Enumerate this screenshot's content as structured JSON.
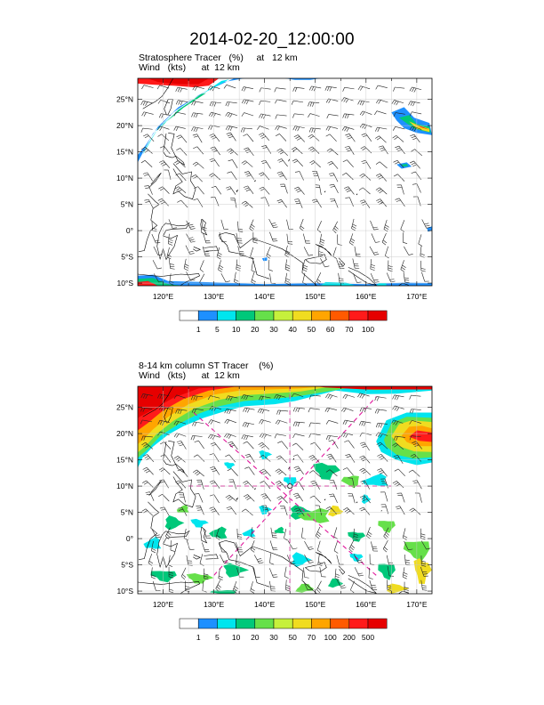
{
  "title": "2014-02-20_12:00:00",
  "panels": [
    {
      "line1": "Stratosphere Tracer   (%)     at   12 km",
      "line2": "Wind   (kts)      at  12 km",
      "lon_ticks": [
        "120°E",
        "130°E",
        "140°E",
        "150°E",
        "160°E",
        "170°E"
      ],
      "lat_ticks": [
        "25°N",
        "20°N",
        "15°N",
        "10°N",
        "5°N",
        "0°",
        "5°S",
        "10°S"
      ],
      "colorbar": {
        "labels": [
          "1",
          "5",
          "10",
          "20",
          "30",
          "40",
          "50",
          "60",
          "70",
          "100"
        ],
        "colors": [
          "#ffffff",
          "#1e90ff",
          "#00e5ee",
          "#00c87a",
          "#66e04a",
          "#c6f03c",
          "#f0dc20",
          "#ffa500",
          "#ff5a00",
          "#ff1a1a",
          "#e60000"
        ]
      }
    },
    {
      "line1": "8-14 km column ST Tracer    (%)",
      "line2": "Wind   (kts)      at  12 km",
      "lon_ticks": [
        "120°E",
        "130°E",
        "140°E",
        "150°E",
        "160°E",
        "170°E"
      ],
      "lat_ticks": [
        "25°N",
        "20°N",
        "15°N",
        "10°N",
        "5°N",
        "0°",
        "5°S",
        "10°S"
      ],
      "colorbar": {
        "labels": [
          "1",
          "5",
          "10",
          "20",
          "30",
          "50",
          "70",
          "100",
          "200",
          "500"
        ],
        "colors": [
          "#ffffff",
          "#1e90ff",
          "#00e5ee",
          "#00c87a",
          "#66e04a",
          "#c6f03c",
          "#f0dc20",
          "#ffa500",
          "#ff5a00",
          "#ff1a1a",
          "#e60000"
        ]
      }
    }
  ],
  "map_extent": {
    "lon": [
      115,
      173
    ],
    "lat": [
      -10.5,
      29
    ]
  },
  "colors": {
    "coastline": "#000000",
    "grid": "#c8c8c8",
    "marker_line": "#e0189c"
  }
}
